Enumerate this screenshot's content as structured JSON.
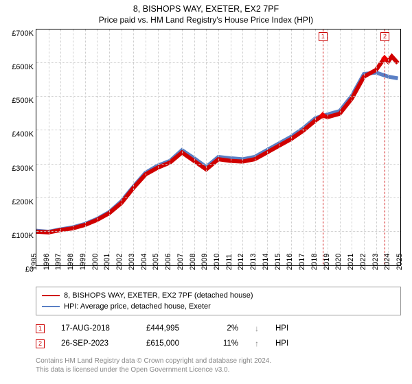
{
  "title": "8, BISHOPS WAY, EXETER, EX2 7PF",
  "subtitle": "Price paid vs. HM Land Registry's House Price Index (HPI)",
  "chart": {
    "type": "line",
    "background_color": "#ffffff",
    "grid_color": "#cccccc",
    "border_color": "#000000",
    "ylim": [
      0,
      700000
    ],
    "ytick_step": 100000,
    "ytick_labels": [
      "£0",
      "£100K",
      "£200K",
      "£300K",
      "£400K",
      "£500K",
      "£600K",
      "£700K"
    ],
    "xlim": [
      1995,
      2025
    ],
    "xticks": [
      1995,
      1996,
      1997,
      1998,
      1999,
      2000,
      2001,
      2002,
      2003,
      2004,
      2005,
      2006,
      2007,
      2008,
      2009,
      2010,
      2011,
      2012,
      2013,
      2014,
      2015,
      2016,
      2017,
      2018,
      2019,
      2020,
      2021,
      2022,
      2023,
      2024,
      2025
    ],
    "xtick_labels": [
      "1995",
      "1996",
      "1997",
      "1998",
      "1999",
      "2000",
      "2001",
      "2002",
      "2003",
      "2004",
      "2005",
      "2006",
      "2007",
      "2008",
      "2009",
      "2010",
      "2011",
      "2012",
      "2013",
      "2014",
      "2015",
      "2016",
      "2017",
      "2018",
      "2019",
      "2020",
      "2021",
      "2022",
      "2023",
      "2024",
      "2025"
    ],
    "series": [
      {
        "name": "property",
        "label": "8, BISHOPS WAY, EXETER, EX2 7PF (detached house)",
        "color": "#d00000",
        "line_width": 1.5,
        "data": [
          [
            1995,
            100000
          ],
          [
            1996,
            98000
          ],
          [
            1997,
            105000
          ],
          [
            1998,
            110000
          ],
          [
            1999,
            120000
          ],
          [
            2000,
            135000
          ],
          [
            2001,
            155000
          ],
          [
            2002,
            185000
          ],
          [
            2003,
            230000
          ],
          [
            2004,
            270000
          ],
          [
            2005,
            290000
          ],
          [
            2006,
            305000
          ],
          [
            2007,
            335000
          ],
          [
            2008,
            310000
          ],
          [
            2009,
            285000
          ],
          [
            2010,
            315000
          ],
          [
            2011,
            310000
          ],
          [
            2012,
            308000
          ],
          [
            2013,
            315000
          ],
          [
            2014,
            335000
          ],
          [
            2015,
            355000
          ],
          [
            2016,
            375000
          ],
          [
            2017,
            400000
          ],
          [
            2018,
            430000
          ],
          [
            2018.6,
            444995
          ],
          [
            2019,
            440000
          ],
          [
            2020,
            450000
          ],
          [
            2021,
            495000
          ],
          [
            2022,
            560000
          ],
          [
            2023,
            580000
          ],
          [
            2023.7,
            615000
          ],
          [
            2024,
            605000
          ],
          [
            2024.3,
            620000
          ],
          [
            2024.8,
            600000
          ]
        ]
      },
      {
        "name": "hpi",
        "label": "HPI: Average price, detached house, Exeter",
        "color": "#5a7fc4",
        "line_width": 1.4,
        "data": [
          [
            1995,
            103000
          ],
          [
            1996,
            100000
          ],
          [
            1997,
            107000
          ],
          [
            1998,
            113000
          ],
          [
            1999,
            123000
          ],
          [
            2000,
            138000
          ],
          [
            2001,
            158000
          ],
          [
            2002,
            190000
          ],
          [
            2003,
            234000
          ],
          [
            2004,
            275000
          ],
          [
            2005,
            296000
          ],
          [
            2006,
            310000
          ],
          [
            2007,
            342000
          ],
          [
            2008,
            318000
          ],
          [
            2009,
            292000
          ],
          [
            2010,
            322000
          ],
          [
            2011,
            318000
          ],
          [
            2012,
            315000
          ],
          [
            2013,
            322000
          ],
          [
            2014,
            342000
          ],
          [
            2015,
            362000
          ],
          [
            2016,
            382000
          ],
          [
            2017,
            407000
          ],
          [
            2018,
            437000
          ],
          [
            2019,
            448000
          ],
          [
            2020,
            458000
          ],
          [
            2021,
            503000
          ],
          [
            2022,
            568000
          ],
          [
            2023,
            572000
          ],
          [
            2024,
            560000
          ],
          [
            2024.8,
            555000
          ]
        ]
      }
    ],
    "markers": [
      {
        "id": "1",
        "x": 2018.6,
        "y": 444995
      },
      {
        "id": "2",
        "x": 2023.7,
        "y": 615000
      }
    ],
    "title_fontsize": 12.5,
    "label_fontsize": 11
  },
  "legend": {
    "items": [
      {
        "color": "#d00000",
        "label": "8, BISHOPS WAY, EXETER, EX2 7PF (detached house)"
      },
      {
        "color": "#5a7fc4",
        "label": "HPI: Average price, detached house, Exeter"
      }
    ]
  },
  "transactions": [
    {
      "marker": "1",
      "date": "17-AUG-2018",
      "price": "£444,995",
      "pct": "2%",
      "arrow": "↓",
      "arrow_color": "#888888",
      "vs": "HPI"
    },
    {
      "marker": "2",
      "date": "26-SEP-2023",
      "price": "£615,000",
      "pct": "11%",
      "arrow": "↑",
      "arrow_color": "#888888",
      "vs": "HPI"
    }
  ],
  "footer_line1": "Contains HM Land Registry data © Crown copyright and database right 2024.",
  "footer_line2": "This data is licensed under the Open Government Licence v3.0."
}
